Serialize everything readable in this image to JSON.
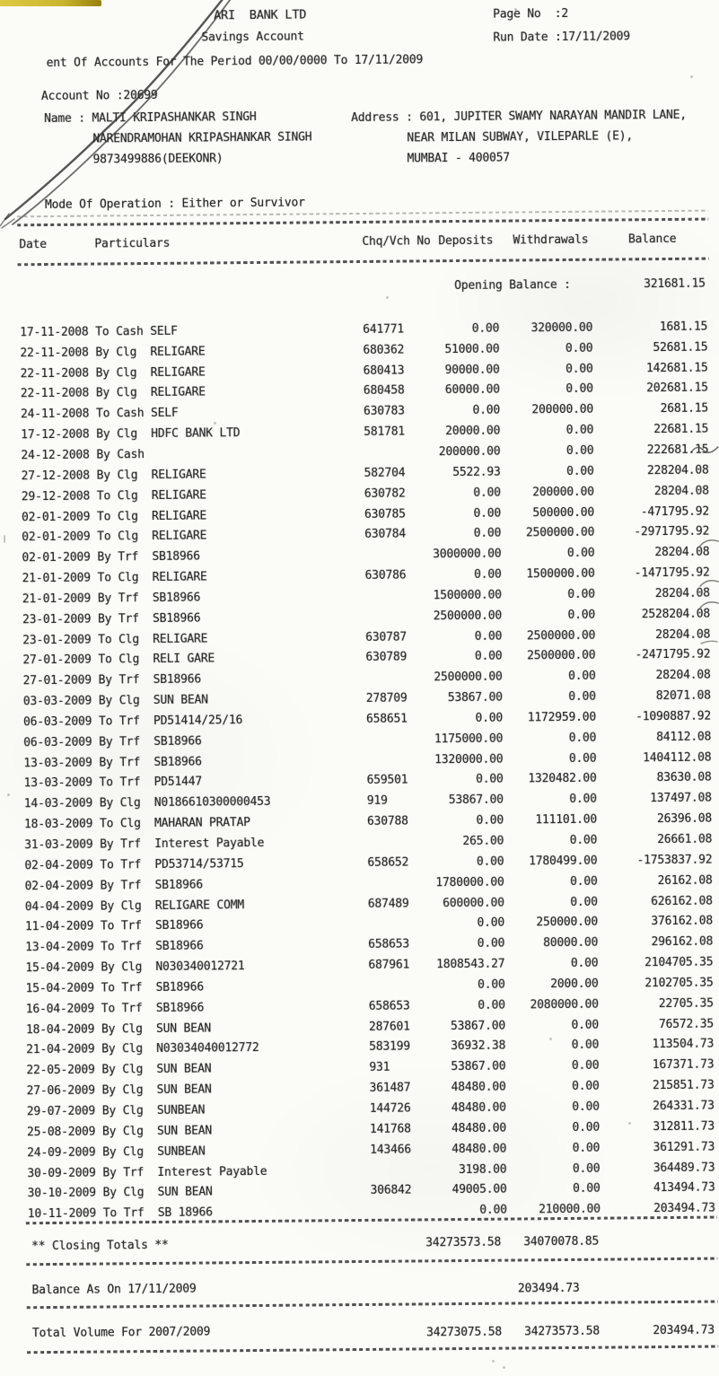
{
  "header": {
    "bank_name": "ARI  BANK LTD",
    "account_type": "Savings Account",
    "statement_line": "ent Of Accounts For The Period 00/00/0000 To 17/11/2009",
    "page_no": "Page No  :2",
    "run_date": "Run Date :17/11/2009"
  },
  "account": {
    "account_no": "Account No :20699",
    "name_line1": "Name : MALTI KRIPASHANKAR SINGH",
    "name_line2": "NARENDRAMOHAN KRIPASHANKAR SINGH",
    "name_line3": "9873499886(DEEKONR)",
    "address_line1": "Address : 601, JUPITER SWAMY NARAYAN MANDIR LANE,",
    "address_line2": "NEAR MILAN SUBWAY, VILEPARLE (E),",
    "address_line3": "MUMBAI - 400057",
    "mode_of_operation": "Mode Of Operation : Either or Survivor"
  },
  "table": {
    "headers": [
      "Date",
      "Particulars",
      "Chq/Vch No",
      "Deposits",
      "Withdrawals",
      "Balance"
    ],
    "opening_balance_label": "Opening Balance :",
    "opening_balance": "321681.15",
    "transactions": [
      {
        "date": "17-11-2008",
        "particulars": "To Cash SELF",
        "chq": "641771",
        "deposits": "0.00",
        "withdrawals": "320000.00",
        "balance": "1681.15"
      },
      {
        "date": "22-11-2008",
        "particulars": "By Clg  RELIGARE",
        "chq": "680362",
        "deposits": "51000.00",
        "withdrawals": "0.00",
        "balance": "52681.15"
      },
      {
        "date": "22-11-2008",
        "particulars": "By Clg  RELIGARE",
        "chq": "680413",
        "deposits": "90000.00",
        "withdrawals": "0.00",
        "balance": "142681.15"
      },
      {
        "date": "22-11-2008",
        "particulars": "By Clg  RELIGARE",
        "chq": "680458",
        "deposits": "60000.00",
        "withdrawals": "0.00",
        "balance": "202681.15"
      },
      {
        "date": "24-11-2008",
        "particulars": "To Cash SELF",
        "chq": "630783",
        "deposits": "0.00",
        "withdrawals": "200000.00",
        "balance": "2681.15"
      },
      {
        "date": "17-12-2008",
        "particulars": "By Clg  HDFC BANK LTD",
        "chq": "581781",
        "deposits": "20000.00",
        "withdrawals": "0.00",
        "balance": "22681.15"
      },
      {
        "date": "24-12-2008",
        "particulars": "By Cash",
        "chq": "",
        "deposits": "200000.00",
        "withdrawals": "0.00",
        "balance": "222681.15"
      },
      {
        "date": "27-12-2008",
        "particulars": "By Clg  RELIGARE",
        "chq": "582704",
        "deposits": "5522.93",
        "withdrawals": "0.00",
        "balance": "228204.08"
      },
      {
        "date": "29-12-2008",
        "particulars": "To Clg  RELIGARE",
        "chq": "630782",
        "deposits": "0.00",
        "withdrawals": "200000.00",
        "balance": "28204.08"
      },
      {
        "date": "02-01-2009",
        "particulars": "To Clg  RELIGARE",
        "chq": "630785",
        "deposits": "0.00",
        "withdrawals": "500000.00",
        "balance": "-471795.92"
      },
      {
        "date": "02-01-2009",
        "particulars": "To Clg  RELIGARE",
        "chq": "630784",
        "deposits": "0.00",
        "withdrawals": "2500000.00",
        "balance": "-2971795.92"
      },
      {
        "date": "02-01-2009",
        "particulars": "By Trf  SB18966",
        "chq": "",
        "deposits": "3000000.00",
        "withdrawals": "0.00",
        "balance": "28204.08"
      },
      {
        "date": "21-01-2009",
        "particulars": "To Clg  RELIGARE",
        "chq": "630786",
        "deposits": "0.00",
        "withdrawals": "1500000.00",
        "balance": "-1471795.92"
      },
      {
        "date": "21-01-2009",
        "particulars": "By Trf  SB18966",
        "chq": "",
        "deposits": "1500000.00",
        "withdrawals": "0.00",
        "balance": "28204.08"
      },
      {
        "date": "23-01-2009",
        "particulars": "By Trf  SB18966",
        "chq": "",
        "deposits": "2500000.00",
        "withdrawals": "0.00",
        "balance": "2528204.08"
      },
      {
        "date": "23-01-2009",
        "particulars": "To Clg  RELIGARE",
        "chq": "630787",
        "deposits": "0.00",
        "withdrawals": "2500000.00",
        "balance": "28204.08"
      },
      {
        "date": "27-01-2009",
        "particulars": "To Clg  RELI GARE",
        "chq": "630789",
        "deposits": "0.00",
        "withdrawals": "2500000.00",
        "balance": "-2471795.92"
      },
      {
        "date": "27-01-2009",
        "particulars": "By Trf  SB18966",
        "chq": "",
        "deposits": "2500000.00",
        "withdrawals": "0.00",
        "balance": "28204.08"
      },
      {
        "date": "03-03-2009",
        "particulars": "By Clg  SUN BEAN",
        "chq": "278709",
        "deposits": "53867.00",
        "withdrawals": "0.00",
        "balance": "82071.08"
      },
      {
        "date": "06-03-2009",
        "particulars": "To Trf  PD51414/25/16",
        "chq": "658651",
        "deposits": "0.00",
        "withdrawals": "1172959.00",
        "balance": "-1090887.92"
      },
      {
        "date": "06-03-2009",
        "particulars": "By Trf  SB18966",
        "chq": "",
        "deposits": "1175000.00",
        "withdrawals": "0.00",
        "balance": "84112.08"
      },
      {
        "date": "13-03-2009",
        "particulars": "By Trf  SB18966",
        "chq": "",
        "deposits": "1320000.00",
        "withdrawals": "0.00",
        "balance": "1404112.08"
      },
      {
        "date": "13-03-2009",
        "particulars": "To Trf  PD51447",
        "chq": "659501",
        "deposits": "0.00",
        "withdrawals": "1320482.00",
        "balance": "83630.08"
      },
      {
        "date": "14-03-2009",
        "particulars": "By Clg  N0186610300000453",
        "chq": "919",
        "deposits": "53867.00",
        "withdrawals": "0.00",
        "balance": "137497.08"
      },
      {
        "date": "18-03-2009",
        "particulars": "To Clg  MAHARAN PRATAP",
        "chq": "630788",
        "deposits": "0.00",
        "withdrawals": "111101.00",
        "balance": "26396.08"
      },
      {
        "date": "31-03-2009",
        "particulars": "By Trf  Interest Payable",
        "chq": "",
        "deposits": "265.00",
        "withdrawals": "0.00",
        "balance": "26661.08"
      },
      {
        "date": "02-04-2009",
        "particulars": "To Trf  PD53714/53715",
        "chq": "658652",
        "deposits": "0.00",
        "withdrawals": "1780499.00",
        "balance": "-1753837.92"
      },
      {
        "date": "02-04-2009",
        "particulars": "By Trf  SB18966",
        "chq": "",
        "deposits": "1780000.00",
        "withdrawals": "0.00",
        "balance": "26162.08"
      },
      {
        "date": "04-04-2009",
        "particulars": "By Clg  RELIGARE COMM",
        "chq": "687489",
        "deposits": "600000.00",
        "withdrawals": "0.00",
        "balance": "626162.08"
      },
      {
        "date": "11-04-2009",
        "particulars": "To Trf  SB18966",
        "chq": "",
        "deposits": "0.00",
        "withdrawals": "250000.00",
        "balance": "376162.08"
      },
      {
        "date": "13-04-2009",
        "particulars": "To Trf  SB18966",
        "chq": "658653",
        "deposits": "0.00",
        "withdrawals": "80000.00",
        "balance": "296162.08"
      },
      {
        "date": "15-04-2009",
        "particulars": "By Clg  N030340012721",
        "chq": "687961",
        "deposits": "1808543.27",
        "withdrawals": "0.00",
        "balance": "2104705.35"
      },
      {
        "date": "15-04-2009",
        "particulars": "To Trf  SB18966",
        "chq": "",
        "deposits": "0.00",
        "withdrawals": "2000.00",
        "balance": "2102705.35"
      },
      {
        "date": "16-04-2009",
        "particulars": "To Trf  SB18966",
        "chq": "658653",
        "deposits": "0.00",
        "withdrawals": "2080000.00",
        "balance": "22705.35"
      },
      {
        "date": "18-04-2009",
        "particulars": "By Clg  SUN BEAN",
        "chq": "287601",
        "deposits": "53867.00",
        "withdrawals": "0.00",
        "balance": "76572.35"
      },
      {
        "date": "21-04-2009",
        "particulars": "By Clg  N03034040012772",
        "chq": "583199",
        "deposits": "36932.38",
        "withdrawals": "0.00",
        "balance": "113504.73"
      },
      {
        "date": "22-05-2009",
        "particulars": "By Clg  SUN BEAN",
        "chq": "931",
        "deposits": "53867.00",
        "withdrawals": "0.00",
        "balance": "167371.73"
      },
      {
        "date": "27-06-2009",
        "particulars": "By Clg  SUN BEAN",
        "chq": "361487",
        "deposits": "48480.00",
        "withdrawals": "0.00",
        "balance": "215851.73"
      },
      {
        "date": "29-07-2009",
        "particulars": "By Clg  SUNBEAN",
        "chq": "144726",
        "deposits": "48480.00",
        "withdrawals": "0.00",
        "balance": "264331.73"
      },
      {
        "date": "25-08-2009",
        "particulars": "By Clg  SUN BEAN",
        "chq": "141768",
        "deposits": "48480.00",
        "withdrawals": "0.00",
        "balance": "312811.73"
      },
      {
        "date": "24-09-2009",
        "particulars": "By Clg  SUNBEAN",
        "chq": "143466",
        "deposits": "48480.00",
        "withdrawals": "0.00",
        "balance": "361291.73"
      },
      {
        "date": "30-09-2009",
        "particulars": "By Trf  Interest Payable",
        "chq": "",
        "deposits": "3198.00",
        "withdrawals": "0.00",
        "balance": "364489.73"
      },
      {
        "date": "30-10-2009",
        "particulars": "By Clg  SUN BEAN",
        "chq": "306842",
        "deposits": "49005.00",
        "withdrawals": "0.00",
        "balance": "413494.73"
      },
      {
        "date": "10-11-2009",
        "particulars": "To Trf  SB 18966",
        "chq": "",
        "deposits": "0.00",
        "withdrawals": "210000.00",
        "balance": "203494.73"
      }
    ]
  },
  "footer": {
    "closing_totals_label": "** Closing Totals **",
    "closing_total_deposits": "34273573.58",
    "closing_total_withdrawals": "34070078.85",
    "balance_as_on_label": "Balance As On 17/11/2009",
    "balance_as_on_value": "203494.73",
    "total_volume_label": "Total Volume For 2007/2009",
    "total_volume_deposits": "34273075.58",
    "total_volume_withdrawals": "34273573.58",
    "total_volume_balance": "203494.73"
  },
  "colors": {
    "pen_mark": "#2f2f2f",
    "highlighter": "#c9b52e",
    "paper": "#fbfbf7"
  }
}
